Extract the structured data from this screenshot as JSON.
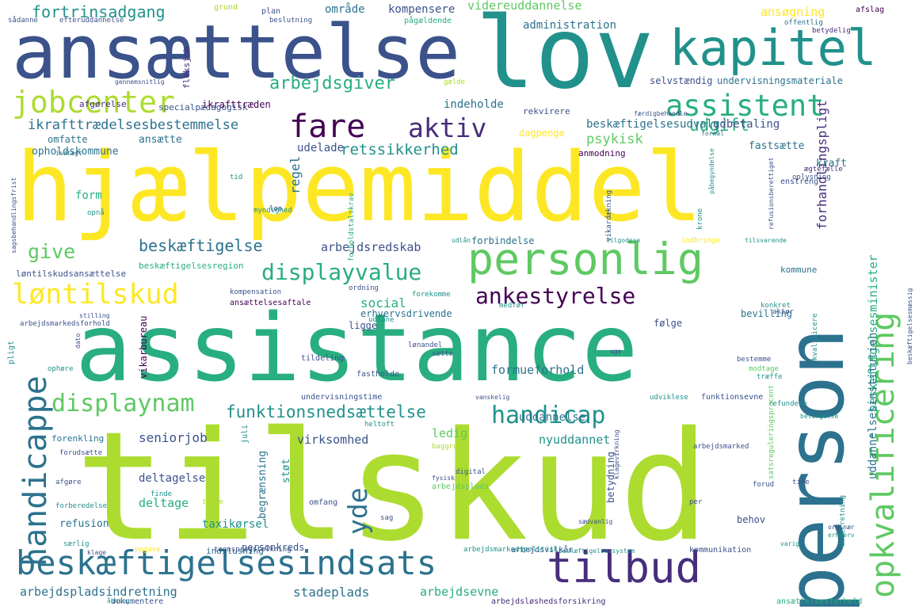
{
  "colors": {
    "c1": "#440154",
    "c2": "#472d7b",
    "c3": "#3b528b",
    "c4": "#2c728e",
    "c5": "#21918c",
    "c6": "#28ae80",
    "c7": "#5ec962",
    "c8": "#addc30",
    "c9": "#fde725"
  },
  "words": [
    {
      "text": "hjælpemiddel",
      "c": "#fde725"
    },
    {
      "text": "tilskud",
      "c": "#addc30"
    },
    {
      "text": "assistance",
      "c": "#28ae80"
    },
    {
      "text": "person",
      "c": "#2c728e"
    },
    {
      "text": "ansættelse",
      "c": "#3b528b"
    },
    {
      "text": "lov",
      "c": "#21918c"
    },
    {
      "text": "kapitel",
      "c": "#21918c"
    },
    {
      "text": "personlig",
      "c": "#5ec962"
    },
    {
      "text": "beskæftigelsesindsats",
      "c": "#2c728e"
    },
    {
      "text": "tilbud",
      "c": "#472d7b"
    },
    {
      "text": "jobcenter",
      "c": "#addc30"
    },
    {
      "text": "assistent",
      "c": "#28ae80"
    },
    {
      "text": "fare",
      "c": "#440154"
    },
    {
      "text": "aktiv",
      "c": "#472d7b"
    },
    {
      "text": "løntilskud",
      "c": "#fde725"
    },
    {
      "text": "handicappe",
      "c": "#2c728e"
    },
    {
      "text": "opkvalificering",
      "c": "#5ec962"
    },
    {
      "text": "ankestyrelse",
      "c": "#440154"
    },
    {
      "text": "displayvalue",
      "c": "#28ae80"
    },
    {
      "text": "displaynam",
      "c": "#5ec962"
    },
    {
      "text": "handicap",
      "c": "#21918c"
    },
    {
      "text": "funktionsnedsættelse",
      "c": "#21918c"
    },
    {
      "text": "retssikkerhed",
      "c": "#21918c"
    },
    {
      "text": "arbejdsgiver",
      "c": "#28ae80"
    },
    {
      "text": "fortrinsadgang",
      "c": "#21918c"
    },
    {
      "text": "udgift",
      "c": "#28ae80"
    },
    {
      "text": "beskæftigelse",
      "c": "#2c728e"
    },
    {
      "text": "arbejdspladsindretning",
      "c": "#2c728e"
    },
    {
      "text": "stadeplads",
      "c": "#2c728e"
    },
    {
      "text": "arbejdsevne",
      "c": "#28ae80"
    },
    {
      "text": "yde",
      "c": "#2c728e"
    },
    {
      "text": "give",
      "c": "#5ec962"
    },
    {
      "text": "ikrafttrædelsesbestemmelse",
      "c": "#2c728e"
    },
    {
      "text": "videreuddannelse",
      "c": "#5ec962"
    },
    {
      "text": "kompensere",
      "c": "#3b528b"
    },
    {
      "text": "administration",
      "c": "#2c728e"
    },
    {
      "text": "område",
      "c": "#2c728e"
    },
    {
      "text": "ansøgning",
      "c": "#fde725"
    },
    {
      "text": "indeholde",
      "c": "#2c728e"
    },
    {
      "text": "beskæftigelsesudvalg",
      "c": "#2c728e"
    },
    {
      "text": "udbetaling",
      "c": "#3b528b"
    },
    {
      "text": "psykisk",
      "c": "#5ec962"
    },
    {
      "text": "arbejdsredskab",
      "c": "#3b528b"
    },
    {
      "text": "social",
      "c": "#28ae80"
    },
    {
      "text": "formueforhold",
      "c": "#2c728e"
    },
    {
      "text": "uddannelse",
      "c": "#2c728e"
    },
    {
      "text": "seniorjob",
      "c": "#3b528b"
    },
    {
      "text": "virksomhed",
      "c": "#3b528b"
    },
    {
      "text": "nyuddannet",
      "c": "#21918c"
    },
    {
      "text": "ledig",
      "c": "#5ec962"
    },
    {
      "text": "deltagelse",
      "c": "#3b528b"
    },
    {
      "text": "deltage",
      "c": "#28ae80"
    },
    {
      "text": "refusion",
      "c": "#2c728e"
    },
    {
      "text": "taxikørsel",
      "c": "#21918c"
    },
    {
      "text": "forhandlingspligt",
      "c": "#472d7b"
    },
    {
      "text": "beskæftigelsesminister",
      "c": "#28ae80"
    },
    {
      "text": "uddannelsesinstitution",
      "c": "#2c728e"
    },
    {
      "text": "ansætte",
      "c": "#2c728e"
    },
    {
      "text": "udelade",
      "c": "#3b528b"
    },
    {
      "text": "omfatte",
      "c": "#2c728e"
    },
    {
      "text": "opholdskommune",
      "c": "#2c728e"
    },
    {
      "text": "regel",
      "c": "#2c728e"
    },
    {
      "text": "form",
      "c": "#28ae80"
    },
    {
      "text": "selvstændig",
      "c": "#3b528b"
    },
    {
      "text": "undervisningsmateriale",
      "c": "#2c728e"
    },
    {
      "text": "specialpædagogisk",
      "c": "#3b528b"
    },
    {
      "text": "rekvirere",
      "c": "#3b528b"
    },
    {
      "text": "dagpenge",
      "c": "#fde725"
    },
    {
      "text": "fastsætte",
      "c": "#2c728e"
    },
    {
      "text": "kraft",
      "c": "#2c728e"
    },
    {
      "text": "anmodning",
      "c": "#440154"
    },
    {
      "text": "bevilling",
      "c": "#2c728e"
    },
    {
      "text": "følge",
      "c": "#3b528b"
    },
    {
      "text": "ligge",
      "c": "#3b528b"
    },
    {
      "text": "erhvervsdrivende",
      "c": "#2c728e"
    },
    {
      "text": "forbindelse",
      "c": "#2c728e"
    },
    {
      "text": "kommune",
      "c": "#2c728e"
    },
    {
      "text": "afgørelse",
      "c": "#472d7b"
    },
    {
      "text": "fleksjob",
      "c": "#472d7b"
    },
    {
      "text": "ikrafttræden",
      "c": "#440154"
    },
    {
      "text": "vikarbureau",
      "c": "#440154"
    },
    {
      "text": "støt",
      "c": "#21918c"
    },
    {
      "text": "begrænsning",
      "c": "#2c728e"
    },
    {
      "text": "betydning",
      "c": "#3b528b"
    },
    {
      "text": "behov",
      "c": "#3b528b"
    },
    {
      "text": "personkreds",
      "c": "#3b528b"
    },
    {
      "text": "indslusning",
      "c": "#2c728e"
    },
    {
      "text": "forenkling",
      "c": "#2c728e"
    },
    {
      "text": "løntilskudsansættelse",
      "c": "#3b528b"
    },
    {
      "text": "beskæftigelsesregion",
      "c": "#28ae80"
    },
    {
      "text": "ansættelsesaftale",
      "c": "#440154"
    },
    {
      "text": "fastholde",
      "c": "#3b528b"
    },
    {
      "text": "tildeling",
      "c": "#3b528b"
    },
    {
      "text": "undervisningstime",
      "c": "#3b528b"
    },
    {
      "text": "funktionsevne",
      "c": "#3b528b"
    },
    {
      "text": "arbejdsvilkår",
      "c": "#3b528b"
    },
    {
      "text": "kommunikation",
      "c": "#3b528b"
    },
    {
      "text": "ansættelsesforhold",
      "c": "#28ae80"
    },
    {
      "text": "dokumentere",
      "c": "#3b528b"
    },
    {
      "text": "arbejdsløshedsforsikring",
      "c": "#472d7b"
    },
    {
      "text": "grund",
      "c": "#addc30"
    },
    {
      "text": "plan",
      "c": "#3b528b"
    },
    {
      "text": "beslutning",
      "c": "#3b528b"
    },
    {
      "text": "pågældende",
      "c": "#28ae80"
    },
    {
      "text": "afslag",
      "c": "#440154"
    },
    {
      "text": "offentlig",
      "c": "#2c728e"
    },
    {
      "text": "betydelig",
      "c": "#472d7b"
    },
    {
      "text": "efteruddannelse",
      "c": "#3b528b"
    },
    {
      "text": "sådanne",
      "c": "#3b528b"
    },
    {
      "text": "gennemsnitlig",
      "c": "#3b528b"
    },
    {
      "text": "gælde",
      "c": "#addc30"
    },
    {
      "text": "færdigbehandle",
      "c": "#3b528b"
    },
    {
      "text": "formål",
      "c": "#2c728e"
    },
    {
      "text": "indtægt",
      "c": "#2c728e"
    },
    {
      "text": "tid",
      "c": "#21918c"
    },
    {
      "text": "opnå",
      "c": "#21918c"
    },
    {
      "text": "myndighed",
      "c": "#21918c"
    },
    {
      "text": "løn",
      "c": "#3b528b"
    },
    {
      "text": "sagsbehandlingsfrist",
      "c": "#3b528b"
    },
    {
      "text": "forholdstalskrav",
      "c": "#28ae80"
    },
    {
      "text": "vikardækning",
      "c": "#3b528b"
    },
    {
      "text": "påbegyndelse",
      "c": "#21918c"
    },
    {
      "text": "krone",
      "c": "#21918c"
    },
    {
      "text": "udlån",
      "c": "#21918c"
    },
    {
      "text": "tilgodese",
      "c": "#21918c"
    },
    {
      "text": "indbringe",
      "c": "#fde725"
    },
    {
      "text": "tilsvarende",
      "c": "#21918c"
    },
    {
      "text": "enstreng",
      "c": "#3b528b"
    },
    {
      "text": "ægtefælle",
      "c": "#472d7b"
    },
    {
      "text": "oplysning",
      "c": "#3b528b"
    },
    {
      "text": "ordning",
      "c": "#3b528b"
    },
    {
      "text": "kompensation",
      "c": "#3b528b"
    },
    {
      "text": "forekomme",
      "c": "#21918c"
    },
    {
      "text": "medfør",
      "c": "#21918c"
    },
    {
      "text": "konkret",
      "c": "#21918c"
    },
    {
      "text": "aktør",
      "c": "#3b528b"
    },
    {
      "text": "stilling",
      "c": "#3b528b"
    },
    {
      "text": "udlåne",
      "c": "#21918c"
    },
    {
      "text": "dato",
      "c": "#3b528b"
    },
    {
      "text": "lønandel",
      "c": "#3b528b"
    },
    {
      "text": "sætte",
      "c": "#3b528b"
    },
    {
      "text": "uge",
      "c": "#3b528b"
    },
    {
      "text": "bestemme",
      "c": "#3b528b"
    },
    {
      "text": "modtage",
      "c": "#5ec962"
    },
    {
      "text": "træffe",
      "c": "#21918c"
    },
    {
      "text": "kvalificere",
      "c": "#21918c"
    },
    {
      "text": "pligt",
      "c": "#21918c"
    },
    {
      "text": "ophøre",
      "c": "#21918c"
    },
    {
      "text": "vanskelig",
      "c": "#3b528b"
    },
    {
      "text": "udviklesе",
      "c": "#21918c"
    },
    {
      "text": "refundere",
      "c": "#21918c"
    },
    {
      "text": "betingelse",
      "c": "#21918c"
    },
    {
      "text": "heltoft",
      "c": "#21918c"
    },
    {
      "text": "juli",
      "c": "#21918c"
    },
    {
      "text": "baggrund",
      "c": "#addc30"
    },
    {
      "text": "arbejdsmarked",
      "c": "#3b528b"
    },
    {
      "text": "forudsætte",
      "c": "#3b528b"
    },
    {
      "text": "afgøre",
      "c": "#3b528b"
    },
    {
      "text": "digital",
      "c": "#3b528b"
    },
    {
      "text": "arbejdsplads",
      "c": "#5ec962"
    },
    {
      "text": "fysisk",
      "c": "#3b528b"
    },
    {
      "text": "forberedelse",
      "c": "#21918c"
    },
    {
      "text": "omfang",
      "c": "#3b528b"
    },
    {
      "text": "finde",
      "c": "#21918c"
    },
    {
      "text": "træde",
      "c": "#addc30"
    },
    {
      "text": "sag",
      "c": "#3b528b"
    },
    {
      "text": "sædvanlig",
      "c": "#3b528b"
    },
    {
      "text": "per",
      "c": "#3b528b"
    },
    {
      "text": "time",
      "c": "#3b528b"
    },
    {
      "text": "forud",
      "c": "#3b528b"
    },
    {
      "text": "ordinær",
      "c": "#3b528b"
    },
    {
      "text": "erhverv",
      "c": "#21918c"
    },
    {
      "text": "underretning",
      "c": "#21918c"
    },
    {
      "text": "varig",
      "c": "#21918c"
    },
    {
      "text": "særlig",
      "c": "#21918c"
    },
    {
      "text": "klage",
      "c": "#3b528b"
    },
    {
      "text": "tegnsprogstolkning",
      "c": "#3b528b"
    },
    {
      "text": "arbejdsmarkedspolitisk",
      "c": "#21918c"
    },
    {
      "text": "beskæftigelsessystem",
      "c": "#21918c"
    },
    {
      "text": "klagevirkning",
      "c": "#3b528b"
    },
    {
      "text": "satsreguleringsprocent",
      "c": "#5ec962"
    },
    {
      "text": "beskæftigelsesmæssig",
      "c": "#3b528b"
    },
    {
      "text": "arbejdsmarkedsforhold",
      "c": "#3b528b"
    },
    {
      "text": "refusionsberettiget",
      "c": "#3b528b"
    },
    {
      "text": "opgave",
      "c": "#fde725"
    },
    {
      "text": "åbning",
      "c": "#21918c"
    }
  ]
}
